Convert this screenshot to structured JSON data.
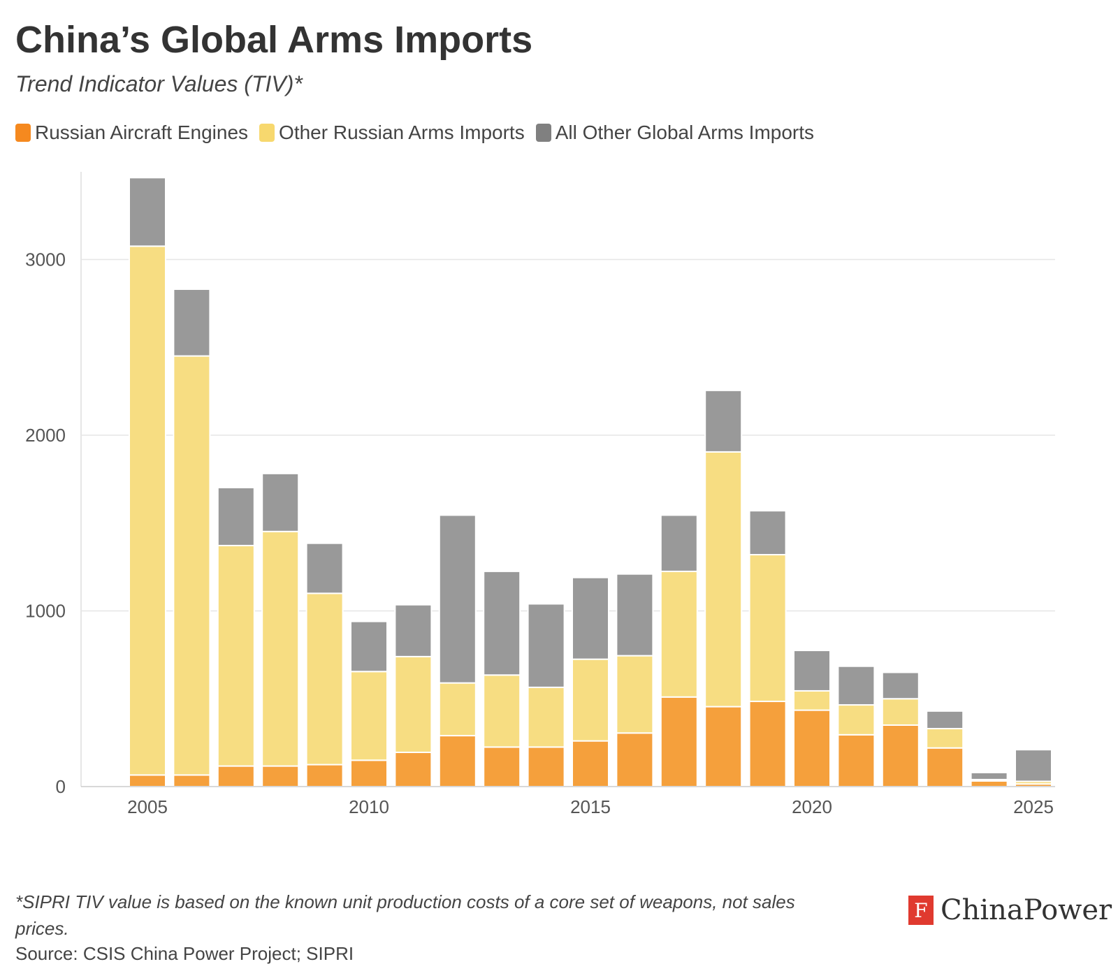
{
  "title": "China’s Global Arms Imports",
  "subtitle": "Trend Indicator Values (TIV)*",
  "footnote": "*SIPRI TIV value is based on the known unit production costs of a core set of weapons, not sales prices.",
  "source": "Source: CSIS China Power Project; SIPRI",
  "brand": {
    "mark": "F",
    "name": "ChinaPower"
  },
  "colors": {
    "engines": "#f5a03c",
    "other_russian": "#f7dd82",
    "global": "#999999",
    "legend_engines": "#f5891f",
    "legend_other_russian": "#f7d86e",
    "legend_global": "#808080",
    "grid": "#e6e6e6",
    "axis": "#cccccc"
  },
  "chart_data": {
    "type": "bar",
    "stacked": true,
    "title": "China’s Global Arms Imports",
    "subtitle": "Trend Indicator Values (TIV)*",
    "xlabel": "",
    "ylabel": "",
    "x_ticks": [
      2005,
      2010,
      2015,
      2020,
      2025
    ],
    "y_ticks": [
      0,
      1000,
      2000,
      3000
    ],
    "ylim": [
      0,
      3500
    ],
    "grid": "horizontal",
    "legend_position": "top-left",
    "categories": [
      2005,
      2006,
      2007,
      2008,
      2009,
      2010,
      2011,
      2012,
      2013,
      2014,
      2015,
      2016,
      2017,
      2018,
      2019,
      2020,
      2021,
      2022,
      2023,
      2024,
      2025
    ],
    "series": [
      {
        "name": "Russian Aircraft Engines",
        "color": "#f5a03c",
        "values": [
          66,
          66,
          117,
          117,
          125,
          150,
          195,
          290,
          225,
          225,
          260,
          305,
          510,
          455,
          485,
          435,
          295,
          350,
          220,
          32,
          15
        ]
      },
      {
        "name": "Other Russian Arms Imports",
        "color": "#f7dd82",
        "values": [
          3010,
          2385,
          1255,
          1335,
          975,
          505,
          545,
          300,
          410,
          340,
          465,
          440,
          715,
          1450,
          835,
          110,
          170,
          150,
          110,
          8,
          15
        ]
      },
      {
        "name": "All Other Global Arms Imports",
        "color": "#999999",
        "values": [
          390,
          380,
          330,
          330,
          285,
          285,
          295,
          955,
          590,
          475,
          465,
          465,
          320,
          350,
          250,
          230,
          220,
          150,
          100,
          40,
          180
        ]
      }
    ]
  }
}
